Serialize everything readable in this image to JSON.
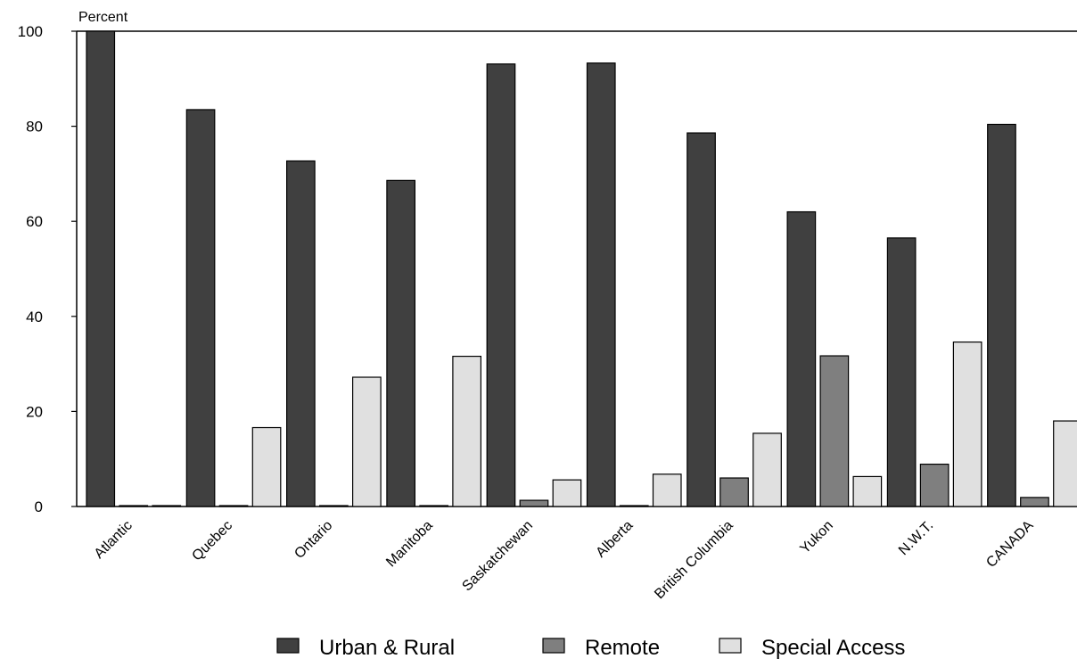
{
  "chart_data": {
    "type": "bar",
    "title": "",
    "ylabel": "Percent",
    "xlabel": "",
    "ylim": [
      0,
      100
    ],
    "yticks": [
      0,
      20,
      40,
      60,
      80,
      100
    ],
    "categories": [
      "Atlantic",
      "Quebec",
      "Ontario",
      "Manitoba",
      "Saskatchewan",
      "Alberta",
      "British Columbia",
      "Yukon",
      "N.W.T.",
      "CANADA"
    ],
    "series": [
      {
        "name": "Urban & Rural",
        "color": "#404040",
        "values": [
          100,
          83.5,
          72.7,
          68.6,
          93.1,
          93.3,
          78.6,
          62.0,
          56.5,
          80.4
        ]
      },
      {
        "name": "Remote",
        "color": "#7f7f7f",
        "values": [
          0.1,
          0.1,
          0.1,
          0.1,
          1.3,
          0.1,
          6.0,
          31.7,
          8.9,
          1.9
        ]
      },
      {
        "name": "Special Access",
        "color": "#e0e0e0",
        "values": [
          0.1,
          16.6,
          27.2,
          31.6,
          5.6,
          6.8,
          15.4,
          6.3,
          34.6,
          18.0
        ]
      }
    ],
    "grid": false,
    "legend_position": "bottom"
  }
}
